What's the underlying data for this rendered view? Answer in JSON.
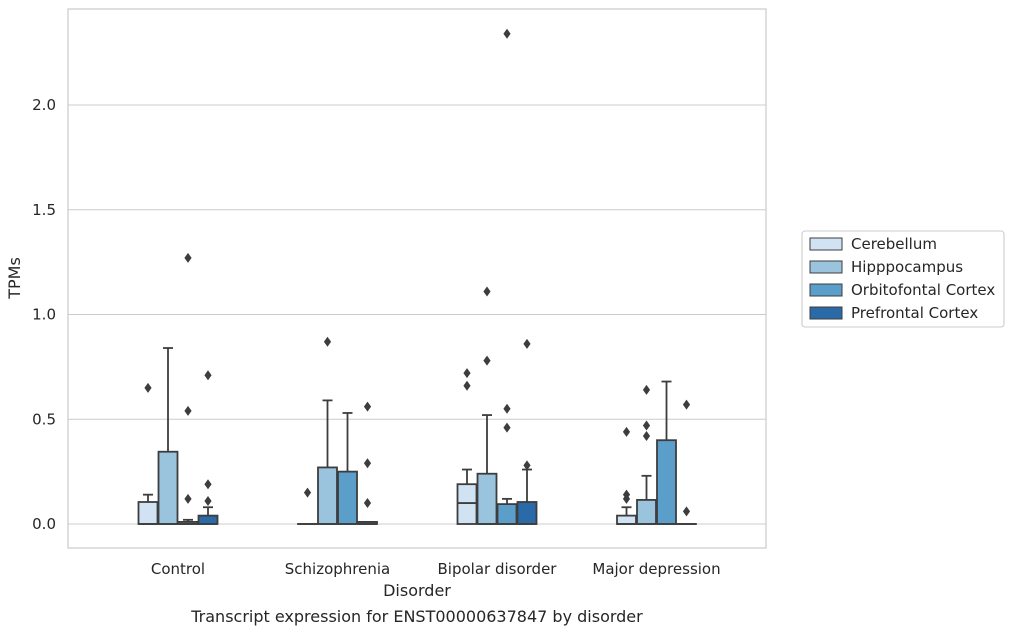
{
  "caption": "Transcript expression for ENST00000637847 by disorder",
  "chart_data": {
    "type": "box",
    "xlabel": "Disorder",
    "ylabel": "TPMs",
    "ylim": [
      -0.11,
      2.46
    ],
    "yticks": [
      0.0,
      0.5,
      1.0,
      1.5,
      2.0
    ],
    "ytick_labels": [
      "0.0",
      "0.5",
      "1.0",
      "1.5",
      "2.0"
    ],
    "grid": "horizontal",
    "legend_position": "right",
    "categories": [
      "Control",
      "Schizophrenia",
      "Bipolar disorder",
      "Major depression"
    ],
    "series": [
      {
        "name": "Cerebellum",
        "color": "#d1e2f2",
        "boxes": [
          {
            "q1": 0.0,
            "median": 0.0,
            "q3": 0.105,
            "whisker_low": 0.0,
            "whisker_high": 0.14,
            "outliers": [
              0.65
            ]
          },
          {
            "q1": 0.0,
            "median": 0.0,
            "q3": 0.0,
            "whisker_low": 0.0,
            "whisker_high": 0.0,
            "outliers": [
              0.15
            ]
          },
          {
            "q1": 0.0,
            "median": 0.1,
            "q3": 0.19,
            "whisker_low": 0.0,
            "whisker_high": 0.26,
            "outliers": [
              0.66,
              0.72
            ]
          },
          {
            "q1": 0.0,
            "median": 0.0,
            "q3": 0.04,
            "whisker_low": 0.0,
            "whisker_high": 0.08,
            "outliers": [
              0.12,
              0.14,
              0.44
            ]
          }
        ]
      },
      {
        "name": "Hipppocampus",
        "color": "#9ac3de",
        "boxes": [
          {
            "q1": 0.0,
            "median": 0.0,
            "q3": 0.345,
            "whisker_low": 0.0,
            "whisker_high": 0.84,
            "outliers": []
          },
          {
            "q1": 0.0,
            "median": 0.0,
            "q3": 0.27,
            "whisker_low": 0.0,
            "whisker_high": 0.59,
            "outliers": [
              0.87
            ]
          },
          {
            "q1": 0.0,
            "median": 0.0,
            "q3": 0.24,
            "whisker_low": 0.0,
            "whisker_high": 0.52,
            "outliers": [
              0.78,
              1.11
            ]
          },
          {
            "q1": 0.0,
            "median": 0.0,
            "q3": 0.115,
            "whisker_low": 0.0,
            "whisker_high": 0.23,
            "outliers": [
              0.42,
              0.47,
              0.64
            ]
          }
        ]
      },
      {
        "name": "Orbitofontal Cortex",
        "color": "#5a9ec9",
        "boxes": [
          {
            "q1": 0.0,
            "median": 0.0,
            "q3": 0.01,
            "whisker_low": 0.0,
            "whisker_high": 0.02,
            "outliers": [
              0.12,
              0.54,
              1.27
            ]
          },
          {
            "q1": 0.0,
            "median": 0.0,
            "q3": 0.25,
            "whisker_low": 0.0,
            "whisker_high": 0.53,
            "outliers": []
          },
          {
            "q1": 0.0,
            "median": 0.0,
            "q3": 0.095,
            "whisker_low": 0.0,
            "whisker_high": 0.12,
            "outliers": [
              0.46,
              0.55,
              2.34
            ]
          },
          {
            "q1": 0.0,
            "median": 0.0,
            "q3": 0.4,
            "whisker_low": 0.0,
            "whisker_high": 0.68,
            "outliers": []
          }
        ]
      },
      {
        "name": "Prefrontal Cortex",
        "color": "#2b6aa8",
        "boxes": [
          {
            "q1": 0.0,
            "median": 0.0,
            "q3": 0.04,
            "whisker_low": 0.0,
            "whisker_high": 0.08,
            "outliers": [
              0.11,
              0.19,
              0.71
            ]
          },
          {
            "q1": 0.0,
            "median": 0.0,
            "q3": 0.01,
            "whisker_low": 0.0,
            "whisker_high": 0.01,
            "outliers": [
              0.1,
              0.29,
              0.56
            ]
          },
          {
            "q1": 0.0,
            "median": 0.0,
            "q3": 0.105,
            "whisker_low": 0.0,
            "whisker_high": 0.26,
            "outliers": [
              0.28,
              0.86
            ]
          },
          {
            "q1": 0.0,
            "median": 0.0,
            "q3": 0.0,
            "whisker_low": 0.0,
            "whisker_high": 0.0,
            "outliers": [
              0.06,
              0.57
            ]
          }
        ]
      }
    ]
  }
}
